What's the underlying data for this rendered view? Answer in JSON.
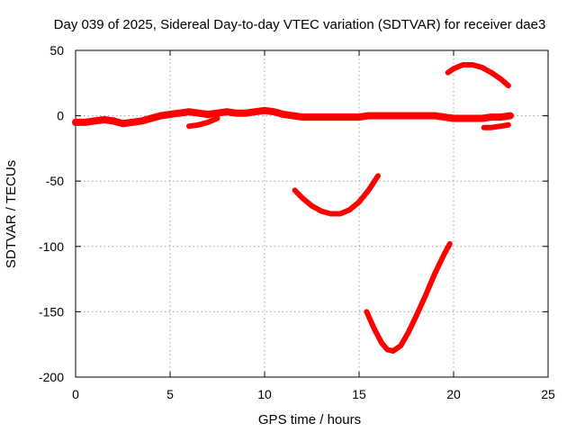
{
  "chart_data": {
    "type": "scatter",
    "title": "Day 039 of 2025, Sidereal Day-to-day VTEC variation (SDTVAR) for receiver dae3",
    "xlabel": "GPS time / hours",
    "ylabel": "SDTVAR / TECUs",
    "xlim": [
      0,
      25
    ],
    "ylim": [
      -200,
      50
    ],
    "xticks": [
      0,
      5,
      10,
      15,
      20,
      25
    ],
    "yticks": [
      -200,
      -150,
      -100,
      -50,
      0,
      50
    ],
    "grid": true,
    "marker_color": "#ff0000",
    "series": [
      {
        "name": "band-near-zero",
        "x": [
          0,
          0.5,
          1,
          1.5,
          2,
          2.5,
          3,
          3.5,
          4,
          4.5,
          5,
          5.5,
          6,
          6.5,
          7,
          7.5,
          8,
          8.5,
          9,
          9.5,
          10,
          10.5,
          11,
          11.5,
          12,
          12.5,
          13,
          13.5,
          14,
          14.5,
          15,
          15.5,
          16,
          16.5,
          17,
          17.5,
          18,
          18.5,
          19,
          19.5,
          20,
          20.5,
          21,
          21.5,
          22,
          22.5,
          23
        ],
        "y": [
          -5,
          -5,
          -4,
          -3,
          -4,
          -6,
          -5,
          -4,
          -2,
          0,
          1,
          2,
          3,
          2,
          1,
          2,
          3,
          2,
          2,
          3,
          4,
          3,
          1,
          0,
          -1,
          -1,
          -1,
          -1,
          -1,
          -1,
          -1,
          0,
          0,
          0,
          0,
          0,
          0,
          0,
          0,
          -1,
          -2,
          -2,
          -2,
          -2,
          -1,
          -1,
          0
        ]
      },
      {
        "name": "arc-1",
        "x": [
          11.6,
          12,
          12.5,
          13,
          13.5,
          14,
          14.5,
          15,
          15.5,
          16
        ],
        "y": [
          -57,
          -63,
          -69,
          -73,
          -75,
          -75,
          -72,
          -66,
          -57,
          -46
        ]
      },
      {
        "name": "arc-2",
        "x": [
          15.4,
          15.8,
          16.2,
          16.5,
          16.8,
          17.2,
          17.6,
          18,
          18.5,
          19,
          19.5,
          19.8
        ],
        "y": [
          -150,
          -163,
          -174,
          -179,
          -180,
          -176,
          -166,
          -154,
          -138,
          -121,
          -106,
          -98
        ]
      },
      {
        "name": "arc-3",
        "x": [
          19.7,
          20,
          20.5,
          21,
          21.5,
          22,
          22.5,
          22.9
        ],
        "y": [
          33,
          36,
          39,
          39,
          37,
          33,
          28,
          23
        ]
      },
      {
        "name": "segment-4",
        "x": [
          6,
          6.5,
          7,
          7.5
        ],
        "y": [
          -8,
          -7,
          -5,
          -2
        ]
      },
      {
        "name": "segment-5",
        "x": [
          21.6,
          22,
          22.5,
          22.9
        ],
        "y": [
          -9,
          -9,
          -8,
          -7
        ]
      }
    ]
  }
}
